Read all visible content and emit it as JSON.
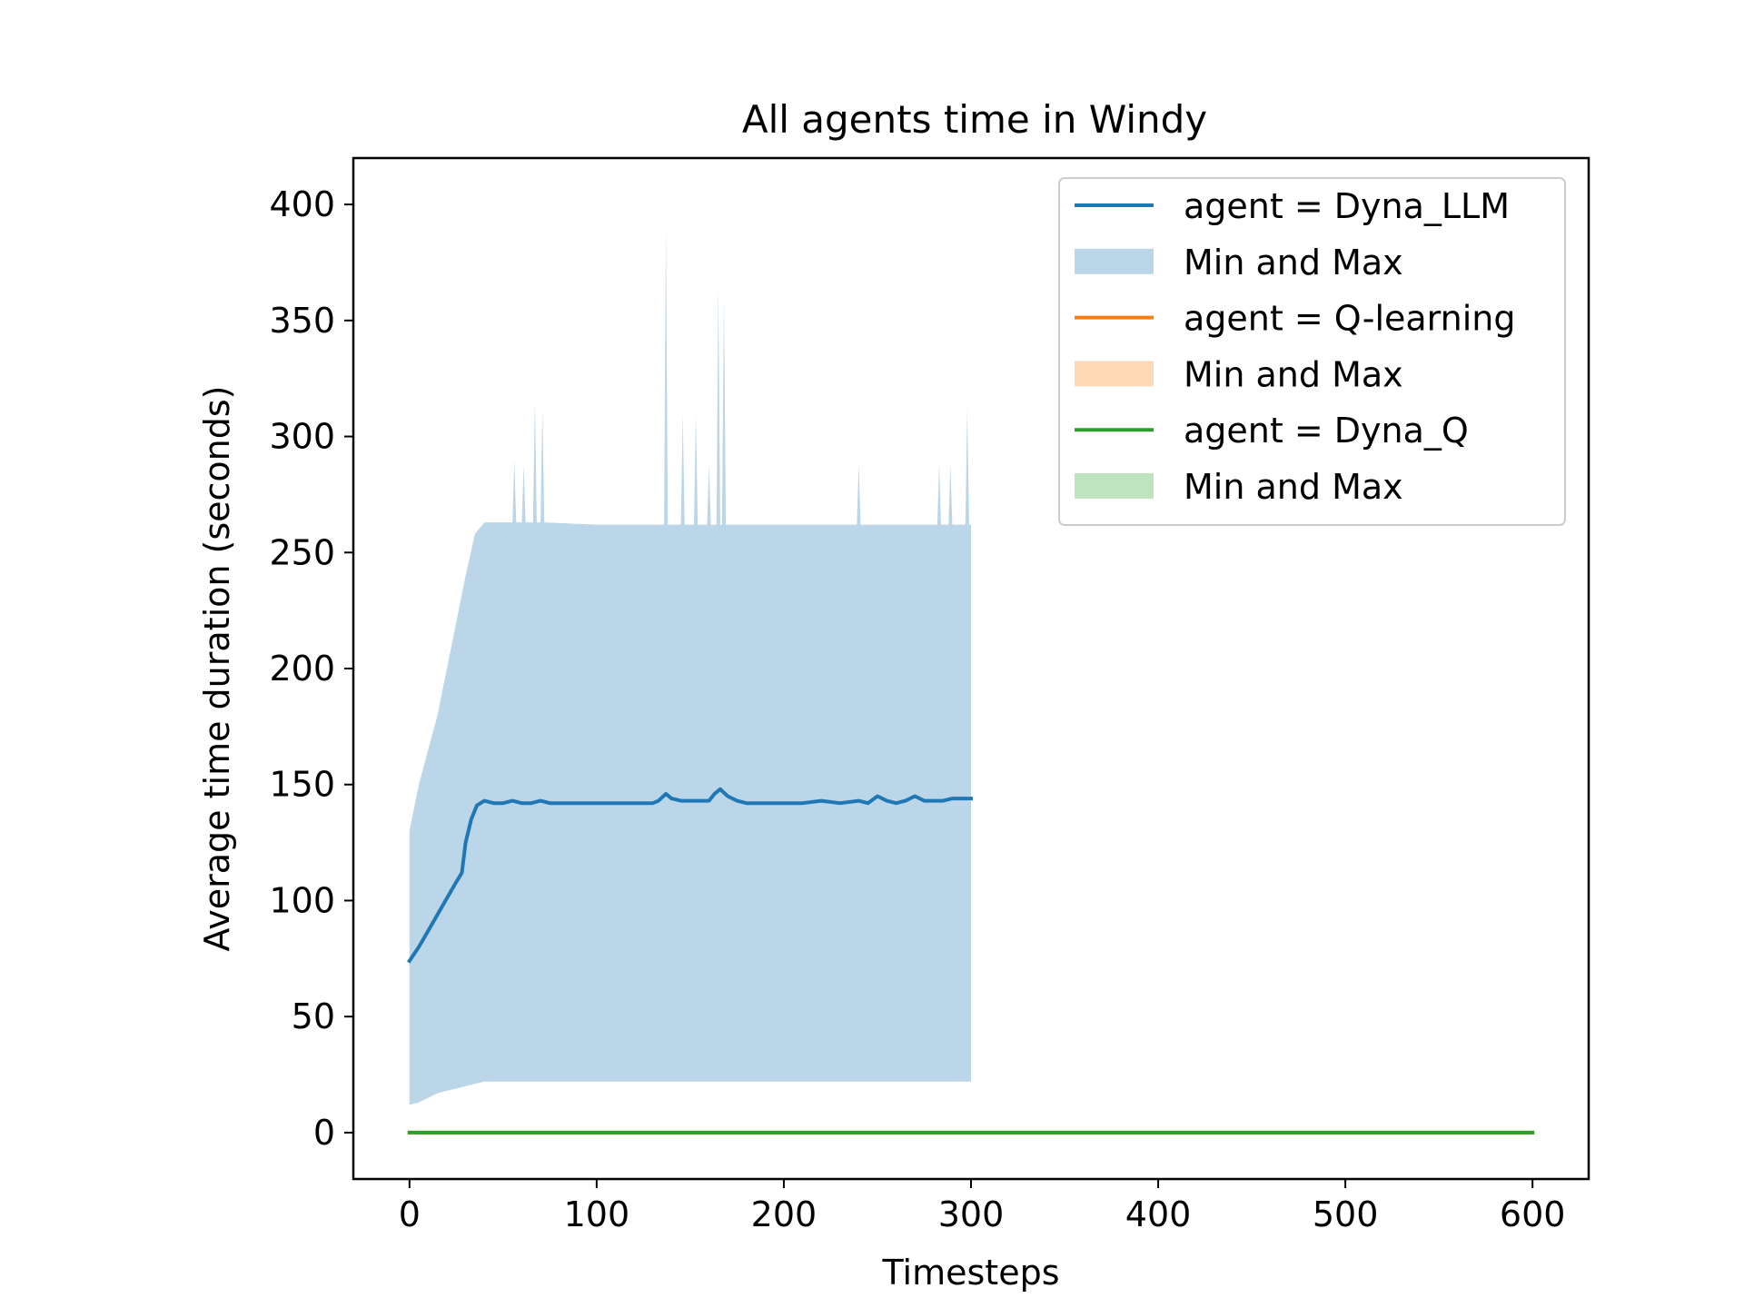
{
  "chart_data": {
    "type": "line",
    "title": "All agents time in Windy",
    "xlabel": "Timesteps",
    "ylabel": "Average time duration (seconds)",
    "xlim": [
      -30,
      630
    ],
    "ylim": [
      -20,
      420
    ],
    "xticks": [
      0,
      100,
      200,
      300,
      400,
      500,
      600
    ],
    "yticks": [
      0,
      50,
      100,
      150,
      200,
      250,
      300,
      350,
      400
    ],
    "grid": false,
    "legend_position": "top-right",
    "series": [
      {
        "name": "agent = Dyna_LLM",
        "color": "#1f77b4",
        "band_label": "Min and Max",
        "band_color": "#1f77b4",
        "x_range": [
          0,
          300
        ],
        "mean": [
          [
            0,
            74
          ],
          [
            5,
            80
          ],
          [
            10,
            87
          ],
          [
            15,
            94
          ],
          [
            20,
            101
          ],
          [
            25,
            108
          ],
          [
            28,
            112
          ],
          [
            30,
            125
          ],
          [
            33,
            135
          ],
          [
            36,
            141
          ],
          [
            40,
            143
          ],
          [
            45,
            142
          ],
          [
            50,
            142
          ],
          [
            55,
            143
          ],
          [
            60,
            142
          ],
          [
            65,
            142
          ],
          [
            70,
            143
          ],
          [
            75,
            142
          ],
          [
            80,
            142
          ],
          [
            90,
            142
          ],
          [
            100,
            142
          ],
          [
            110,
            142
          ],
          [
            120,
            142
          ],
          [
            130,
            142
          ],
          [
            133,
            143
          ],
          [
            137,
            146
          ],
          [
            140,
            144
          ],
          [
            145,
            143
          ],
          [
            150,
            143
          ],
          [
            155,
            143
          ],
          [
            160,
            143
          ],
          [
            163,
            146
          ],
          [
            166,
            148
          ],
          [
            170,
            145
          ],
          [
            175,
            143
          ],
          [
            180,
            142
          ],
          [
            190,
            142
          ],
          [
            200,
            142
          ],
          [
            210,
            142
          ],
          [
            220,
            143
          ],
          [
            230,
            142
          ],
          [
            240,
            143
          ],
          [
            245,
            142
          ],
          [
            250,
            145
          ],
          [
            255,
            143
          ],
          [
            260,
            142
          ],
          [
            265,
            143
          ],
          [
            270,
            145
          ],
          [
            275,
            143
          ],
          [
            280,
            143
          ],
          [
            285,
            143
          ],
          [
            290,
            144
          ],
          [
            295,
            144
          ],
          [
            300,
            144
          ]
        ],
        "min": [
          [
            0,
            12
          ],
          [
            5,
            13
          ],
          [
            10,
            15
          ],
          [
            15,
            17
          ],
          [
            20,
            18
          ],
          [
            25,
            19
          ],
          [
            30,
            20
          ],
          [
            35,
            21
          ],
          [
            40,
            22
          ],
          [
            60,
            22
          ],
          [
            100,
            22
          ],
          [
            150,
            22
          ],
          [
            200,
            22
          ],
          [
            250,
            22
          ],
          [
            300,
            22
          ]
        ],
        "max": [
          [
            0,
            130
          ],
          [
            5,
            150
          ],
          [
            10,
            165
          ],
          [
            15,
            180
          ],
          [
            20,
            200
          ],
          [
            25,
            220
          ],
          [
            30,
            240
          ],
          [
            35,
            258
          ],
          [
            40,
            263
          ],
          [
            50,
            263
          ],
          [
            55,
            263
          ],
          [
            56,
            290
          ],
          [
            57,
            263
          ],
          [
            60,
            263
          ],
          [
            61,
            288
          ],
          [
            62,
            263
          ],
          [
            66,
            263
          ],
          [
            67,
            315
          ],
          [
            68,
            263
          ],
          [
            70,
            263
          ],
          [
            71,
            312
          ],
          [
            72,
            263
          ],
          [
            100,
            262
          ],
          [
            136,
            262
          ],
          [
            137,
            390
          ],
          [
            138,
            262
          ],
          [
            145,
            262
          ],
          [
            146,
            310
          ],
          [
            147,
            262
          ],
          [
            152,
            262
          ],
          [
            153,
            310
          ],
          [
            154,
            262
          ],
          [
            159,
            262
          ],
          [
            160,
            288
          ],
          [
            161,
            262
          ],
          [
            164,
            262
          ],
          [
            165,
            365
          ],
          [
            166,
            262
          ],
          [
            167,
            262
          ],
          [
            168,
            360
          ],
          [
            169,
            262
          ],
          [
            200,
            262
          ],
          [
            239,
            262
          ],
          [
            240,
            288
          ],
          [
            241,
            262
          ],
          [
            282,
            262
          ],
          [
            283,
            288
          ],
          [
            284,
            262
          ],
          [
            288,
            262
          ],
          [
            289,
            288
          ],
          [
            290,
            262
          ],
          [
            297,
            262
          ],
          [
            298,
            312
          ],
          [
            299,
            262
          ],
          [
            300,
            262
          ]
        ]
      },
      {
        "name": "agent = Q-learning",
        "color": "#ff7f0e",
        "band_label": "Min and Max",
        "band_color": "#ff7f0e",
        "x_range": [
          0,
          600
        ],
        "value": 0
      },
      {
        "name": "agent = Dyna_Q",
        "color": "#2ca02c",
        "band_label": "Min and Max",
        "band_color": "#2ca02c",
        "x_range": [
          0,
          600
        ],
        "value": 0
      }
    ]
  }
}
